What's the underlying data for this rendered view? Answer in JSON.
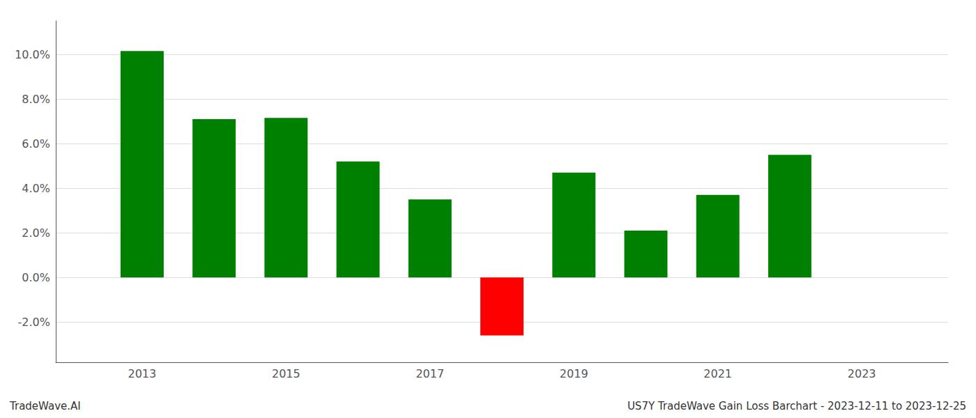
{
  "chart_data": {
    "type": "bar",
    "x": [
      2013,
      2014,
      2015,
      2016,
      2017,
      2018,
      2019,
      2020,
      2021,
      2022
    ],
    "values": [
      0.1015,
      0.071,
      0.0715,
      0.052,
      0.035,
      -0.026,
      0.047,
      0.021,
      0.037,
      0.055
    ],
    "colors": [
      "#008000",
      "#008000",
      "#008000",
      "#008000",
      "#008000",
      "#ff0000",
      "#008000",
      "#008000",
      "#008000",
      "#008000"
    ],
    "xlim": [
      2011.8,
      2024.2
    ],
    "xticks": [
      2013,
      2015,
      2017,
      2019,
      2021,
      2023
    ],
    "ylim": [
      -0.038,
      0.115
    ],
    "yticks": [
      {
        "value": -0.02,
        "label": "-2.0%"
      },
      {
        "value": 0.0,
        "label": "0.0%"
      },
      {
        "value": 0.02,
        "label": "2.0%"
      },
      {
        "value": 0.04,
        "label": "4.0%"
      },
      {
        "value": 0.06,
        "label": "6.0%"
      },
      {
        "value": 0.08,
        "label": "8.0%"
      },
      {
        "value": 0.1,
        "label": "10.0%"
      }
    ],
    "grid": true,
    "annotations": [
      "TradeWave.AI",
      "US7Y TradeWave Gain Loss Barchart - 2023-12-11 to 2023-12-25"
    ]
  }
}
